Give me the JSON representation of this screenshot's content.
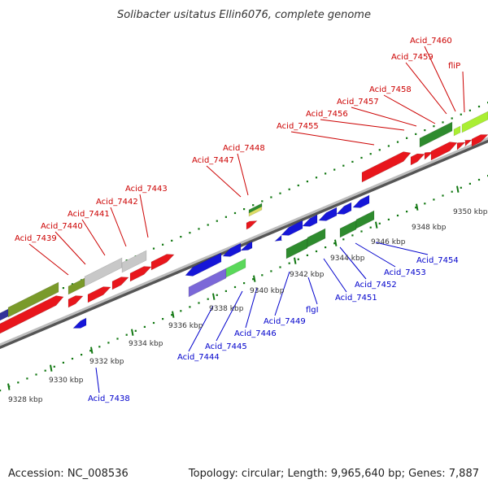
{
  "title": "Solibacter usitatus Ellin6076, complete genome",
  "footer": {
    "accession": "Accession: NC_008536",
    "summary": "Topology: circular; Length: 9,965,640 bp; Genes: 7,887"
  },
  "colors": {
    "forward_label": "#cc0000",
    "reverse_label": "#0000cc",
    "ruler_tick": "#117711",
    "backbone": "#8a8a8a"
  },
  "ticks": [
    {
      "label": "9328 kbp"
    },
    {
      "label": "9330 kbp"
    },
    {
      "label": "9332 kbp"
    },
    {
      "label": "9334 kbp"
    },
    {
      "label": "9336 kbp"
    },
    {
      "label": "9338 kbp"
    },
    {
      "label": "9340 kbp"
    },
    {
      "label": "9342 kbp"
    },
    {
      "label": "9344 kbp"
    },
    {
      "label": "9346 kbp"
    },
    {
      "label": "9348 kbp"
    },
    {
      "label": "9350 kbp"
    }
  ],
  "forward_genes": [
    {
      "label": "Acid_7439"
    },
    {
      "label": "Acid_7440"
    },
    {
      "label": "Acid_7441"
    },
    {
      "label": "Acid_7442"
    },
    {
      "label": "Acid_7443"
    },
    {
      "label": "Acid_7447"
    },
    {
      "label": "Acid_7448"
    },
    {
      "label": "Acid_7455"
    },
    {
      "label": "Acid_7456"
    },
    {
      "label": "Acid_7457"
    },
    {
      "label": "Acid_7458"
    },
    {
      "label": "Acid_7459"
    },
    {
      "label": "Acid_7460"
    },
    {
      "label": "fliP"
    }
  ],
  "reverse_genes": [
    {
      "label": "Acid_7438"
    },
    {
      "label": "Acid_7444"
    },
    {
      "label": "Acid_7445"
    },
    {
      "label": "Acid_7446"
    },
    {
      "label": "Acid_7449"
    },
    {
      "label": "flgI"
    },
    {
      "label": "Acid_7451"
    },
    {
      "label": "Acid_7452"
    },
    {
      "label": "Acid_7453"
    },
    {
      "label": "Acid_7454"
    }
  ]
}
